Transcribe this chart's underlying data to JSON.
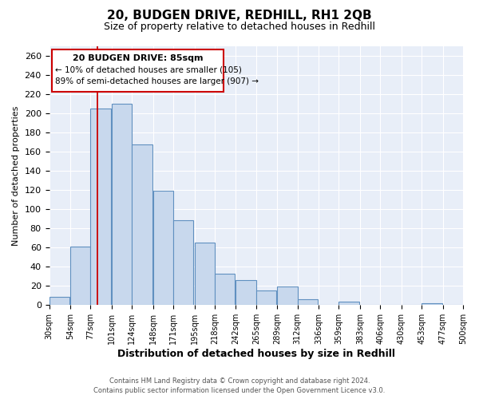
{
  "title": "20, BUDGEN DRIVE, REDHILL, RH1 2QB",
  "subtitle": "Size of property relative to detached houses in Redhill",
  "xlabel": "Distribution of detached houses by size in Redhill",
  "ylabel": "Number of detached properties",
  "bar_left_edges": [
    30,
    54,
    77,
    101,
    124,
    148,
    171,
    195,
    218,
    242,
    265,
    289,
    312,
    336,
    359,
    383,
    406,
    430,
    453,
    477
  ],
  "bar_heights": [
    9,
    61,
    205,
    210,
    167,
    119,
    88,
    65,
    33,
    26,
    15,
    19,
    6,
    0,
    4,
    0,
    0,
    0,
    2,
    0
  ],
  "bin_width": 23,
  "tick_labels": [
    "30sqm",
    "54sqm",
    "77sqm",
    "101sqm",
    "124sqm",
    "148sqm",
    "171sqm",
    "195sqm",
    "218sqm",
    "242sqm",
    "265sqm",
    "289sqm",
    "312sqm",
    "336sqm",
    "359sqm",
    "383sqm",
    "406sqm",
    "430sqm",
    "453sqm",
    "477sqm",
    "500sqm"
  ],
  "bar_color": "#c8d8ed",
  "bar_edge_color": "#6090c0",
  "reference_line_x": 85,
  "reference_line_color": "#cc0000",
  "annotation_title": "20 BUDGEN DRIVE: 85sqm",
  "annotation_line1": "← 10% of detached houses are smaller (105)",
  "annotation_line2": "89% of semi-detached houses are larger (907) →",
  "ylim": [
    0,
    270
  ],
  "xlim": [
    30,
    500
  ],
  "yticks": [
    0,
    20,
    40,
    60,
    80,
    100,
    120,
    140,
    160,
    180,
    200,
    220,
    240,
    260
  ],
  "footer1": "Contains HM Land Registry data © Crown copyright and database right 2024.",
  "footer2": "Contains public sector information licensed under the Open Government Licence v3.0.",
  "bg_color": "#ffffff",
  "plot_bg_color": "#e8eef8",
  "grid_color": "#ffffff"
}
